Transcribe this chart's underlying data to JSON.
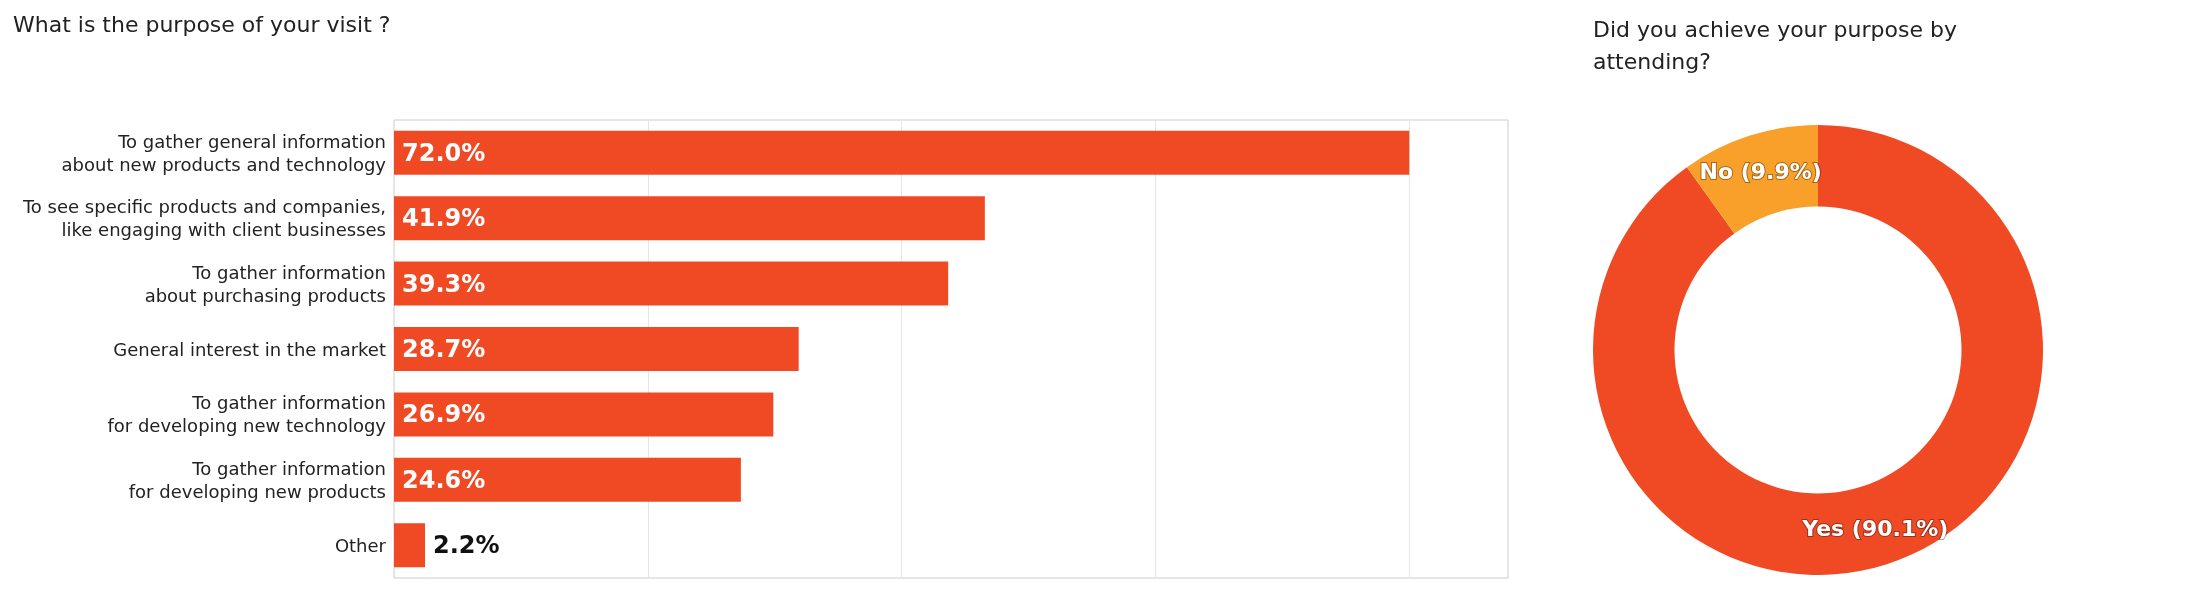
{
  "chart_data": [
    {
      "type": "bar",
      "orientation": "horizontal",
      "title": "What is the purpose of your visit ?",
      "categories": [
        "To gather general information\nabout new products and technology",
        "To see specific products and companies,\nlike engaging with client businesses",
        "To gather information\nabout purchasing products",
        "General interest in the market",
        "To gather information\nfor developing new technology",
        "To gather information\nfor developing new products",
        "Other"
      ],
      "values": [
        72.0,
        41.9,
        39.3,
        28.7,
        26.9,
        24.6,
        2.2
      ],
      "value_labels": [
        "72.0%",
        "41.9%",
        "39.3%",
        "28.7%",
        "26.9%",
        "24.6%",
        "2.2%"
      ],
      "color": "#f04a24",
      "xlim": [
        0,
        79
      ],
      "xticks": [
        {
          "value": 18,
          "label": null
        },
        {
          "value": 36,
          "label": null
        },
        {
          "value": 54,
          "label": null
        },
        {
          "value": 72,
          "label": null
        }
      ],
      "grid": "x",
      "tick_labels": "y"
    },
    {
      "type": "donut",
      "title": "Did you achieve your purpose by\nattending?",
      "categories": [
        "Yes",
        "No"
      ],
      "values": [
        90.1,
        9.9
      ],
      "value_labels": [
        "(90.1%)",
        "(9.9%)"
      ],
      "colors": [
        "#f04a24",
        "#f9a02a"
      ]
    }
  ]
}
